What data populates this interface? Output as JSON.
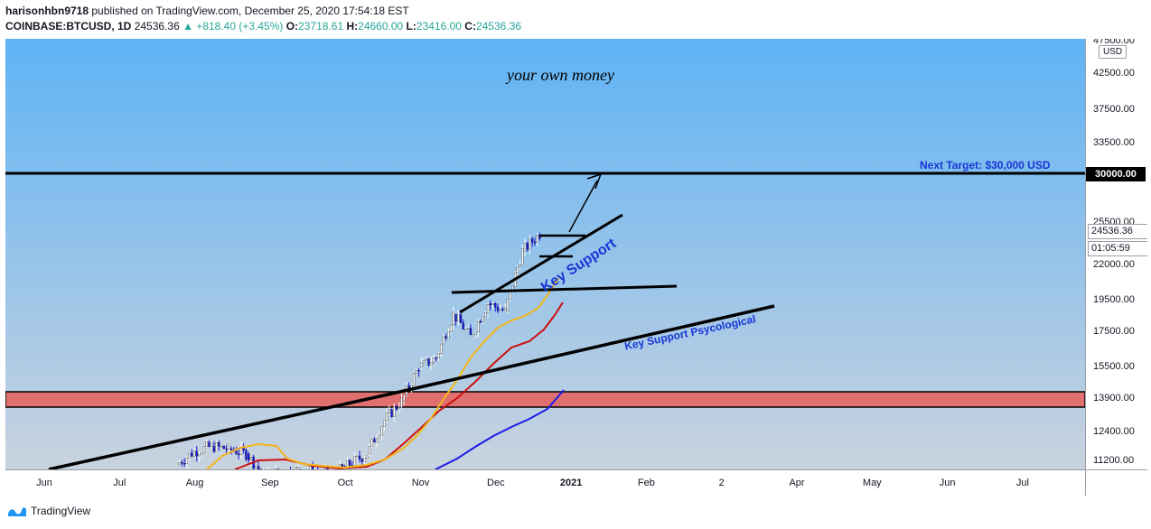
{
  "header": {
    "publisher": "harisonhbn9718",
    "published_text": "published on TradingView.com, December 25, 2020 17:54:18 EST",
    "symbol": "COINBASE:BTCUSD, 1D",
    "last": "24536.36",
    "change": "▲ +818.40 (+3.45%)",
    "o_label": "O:",
    "o_value": "23718.61",
    "h_label": "H:",
    "h_value": "24660.00",
    "l_label": "L:",
    "l_value": "23416.00",
    "c_label": "C:",
    "c_value": "24536.36"
  },
  "price_axis": {
    "currency": "USD",
    "ticks": [
      "47500.00",
      "42500.00",
      "37500.00",
      "33500.00",
      "25500.00",
      "22000.00",
      "19500.00",
      "17500.00",
      "15500.00",
      "13900.00",
      "12400.00",
      "11200.00"
    ],
    "target_label": "30000.00",
    "last_price_label": "24536.36",
    "countdown": "01:05:59"
  },
  "time_axis": {
    "ticks": [
      {
        "label": "Jun",
        "bold": false
      },
      {
        "label": "Jul",
        "bold": false
      },
      {
        "label": "Aug",
        "bold": false
      },
      {
        "label": "Sep",
        "bold": false
      },
      {
        "label": "Oct",
        "bold": false
      },
      {
        "label": "Nov",
        "bold": false
      },
      {
        "label": "Dec",
        "bold": false
      },
      {
        "label": "2021",
        "bold": true
      },
      {
        "label": "Feb",
        "bold": false
      },
      {
        "label": "2",
        "bold": false
      },
      {
        "label": "Apr",
        "bold": false
      },
      {
        "label": "May",
        "bold": false
      },
      {
        "label": "Jun",
        "bold": false
      },
      {
        "label": "Jul",
        "bold": false
      }
    ]
  },
  "annotations": {
    "watermark": "your own money",
    "next_target": "Next Target: $30,000 USD",
    "key_support": "Key Support",
    "key_support_psy": "Key Support Psycological"
  },
  "footer": {
    "brand": "TradingView"
  },
  "colors": {
    "bg_top": "#5fb3f5",
    "bg_bottom": "#c9d3df",
    "zone_fill": "#e07070",
    "ma_fast": "#f2b61a",
    "ma_mid": "#cc1111",
    "ma_slow": "#1a1ae6",
    "annotation_blue": "#1736d6"
  },
  "chart_data": {
    "type": "candlestick",
    "symbol": "COINBASE:BTCUSD",
    "interval": "1D",
    "ylim": [
      10900,
      48000
    ],
    "x_range": [
      "2020-06-01",
      "2021-07-31"
    ],
    "y_scale": "log",
    "last_price": 24536.36,
    "horizontal_lines": [
      {
        "price": 30000,
        "label": "Next Target: $30,000 USD"
      }
    ],
    "zones": [
      {
        "from": 13200,
        "to": 14100
      }
    ],
    "weekly_closes_approx": [
      {
        "date": "2020-07-27",
        "close": 11100
      },
      {
        "date": "2020-08-03",
        "close": 11600
      },
      {
        "date": "2020-08-10",
        "close": 11800
      },
      {
        "date": "2020-08-17",
        "close": 11700
      },
      {
        "date": "2020-08-24",
        "close": 11500
      },
      {
        "date": "2020-08-31",
        "close": 10700
      },
      {
        "date": "2020-09-14",
        "close": 10900
      },
      {
        "date": "2020-09-28",
        "close": 10700
      },
      {
        "date": "2020-10-12",
        "close": 11500
      },
      {
        "date": "2020-10-19",
        "close": 12900
      },
      {
        "date": "2020-10-26",
        "close": 13800
      },
      {
        "date": "2020-11-02",
        "close": 15500
      },
      {
        "date": "2020-11-09",
        "close": 16000
      },
      {
        "date": "2020-11-16",
        "close": 18600
      },
      {
        "date": "2020-11-23",
        "close": 17200
      },
      {
        "date": "2020-11-30",
        "close": 19300
      },
      {
        "date": "2020-12-07",
        "close": 18800
      },
      {
        "date": "2020-12-14",
        "close": 23100
      },
      {
        "date": "2020-12-21",
        "close": 24536
      }
    ]
  }
}
